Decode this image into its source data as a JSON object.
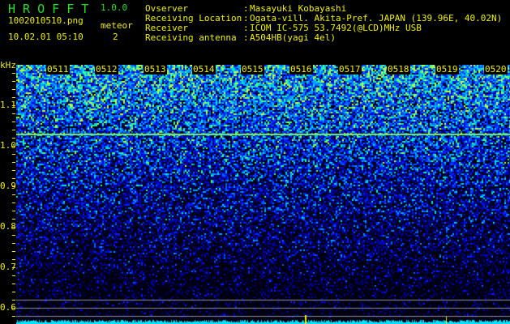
{
  "app": {
    "name": "H R O F F T",
    "version": "1.0.0"
  },
  "file": {
    "name": "1002010510.png",
    "datetime": "10.02.01 05:10"
  },
  "meteor": {
    "label": "meteor",
    "count": "2"
  },
  "info": [
    {
      "label": "Ovserver",
      "value": "Masayuki Kobayashi"
    },
    {
      "label": "Receiving Location",
      "value": "Ogata-vill. Akita-Pref. JAPAN (139.96E, 40.02N)"
    },
    {
      "label": "Receiver",
      "value": "ICOM IC-575 53.7492(@LCD)MHz USB"
    },
    {
      "label": "Receiving antenna",
      "value": "A504HB(yagi 4el)"
    }
  ],
  "colors": {
    "text": "#f0f000",
    "title": "#20e020",
    "background": "#000000"
  },
  "chart_data": {
    "type": "heatmap",
    "ylabel": "kHz",
    "yticks": [
      "1.1",
      "1.0",
      "0.9",
      "0.8",
      "0.7",
      "0.6"
    ],
    "ylim": [
      0.57,
      1.21
    ],
    "xticks": [
      "0511",
      "0512",
      "0513",
      "0514",
      "0515",
      "0516",
      "0517",
      "0518",
      "0519",
      "0520"
    ],
    "carrier_line_khz": 1.03
  }
}
